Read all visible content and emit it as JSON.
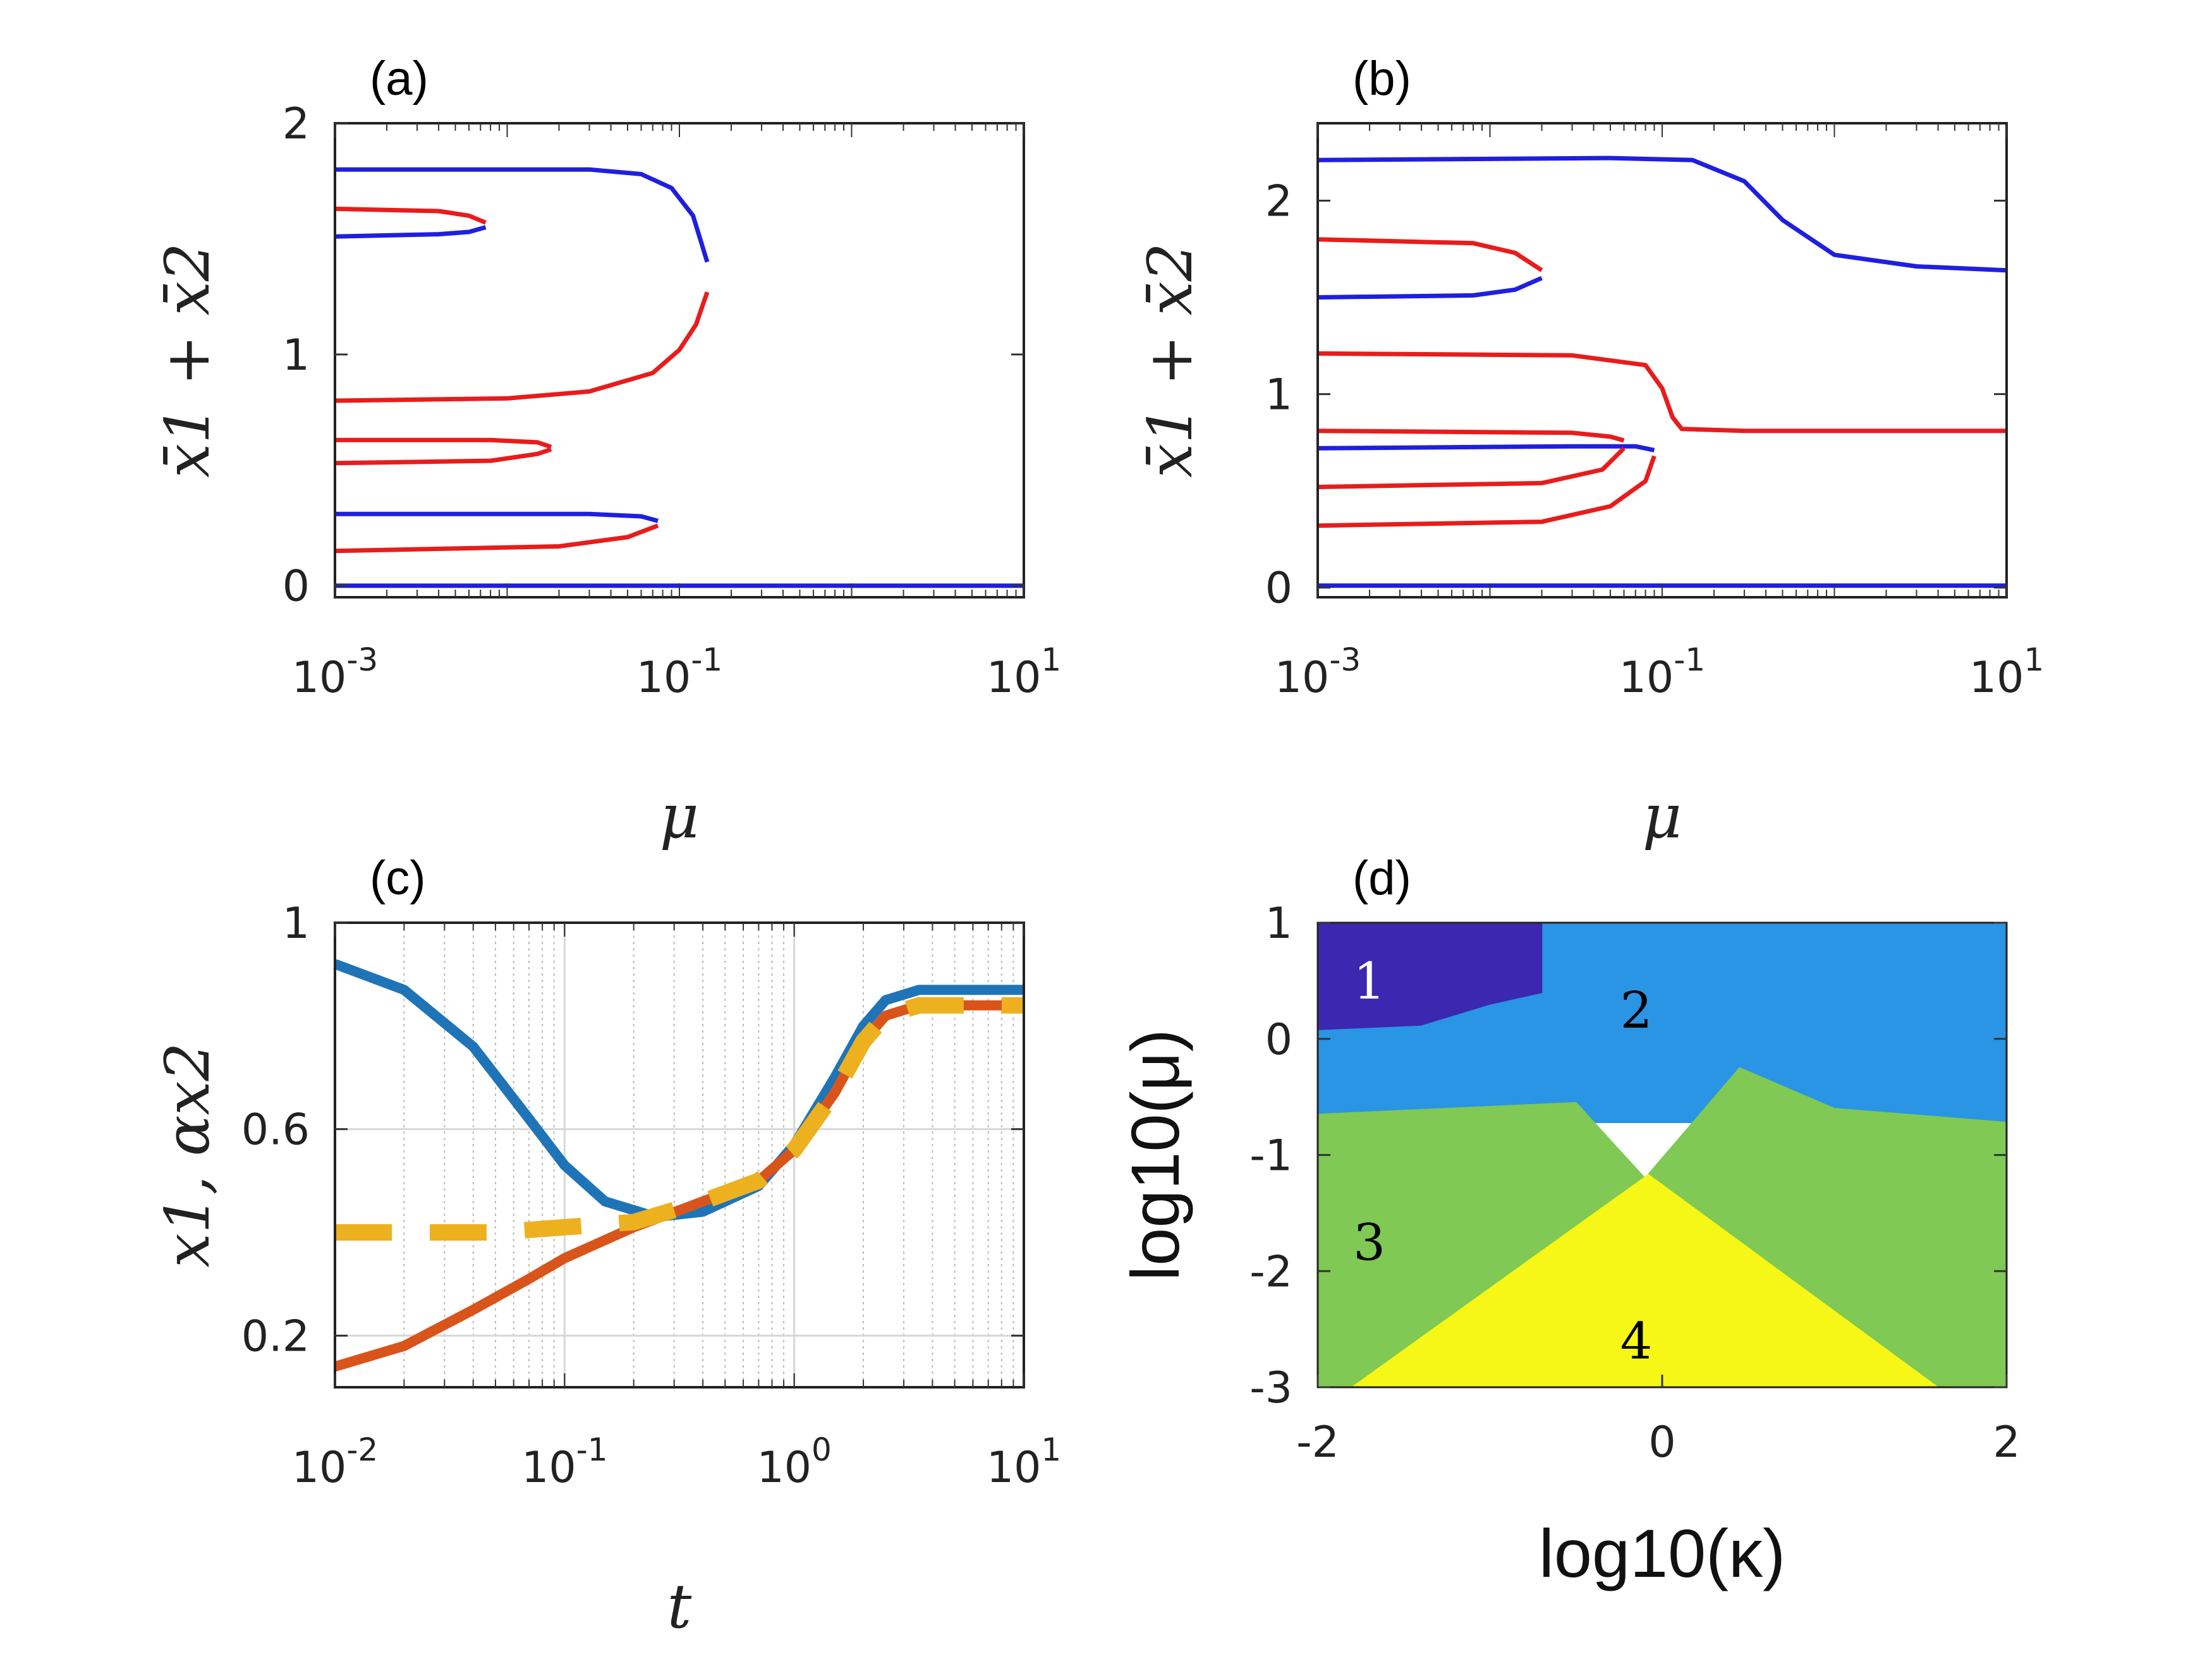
{
  "chart_data": [
    {
      "panel": "a",
      "type": "line",
      "title": "(a)",
      "xlabel": "μ",
      "ylabel": "x̄1 + x̄2",
      "xscale": "log",
      "xlim": [
        0.001,
        10
      ],
      "ylim": [
        -0.05,
        2
      ],
      "xticks": [
        {
          "v": 0.001,
          "b": "10",
          "e": "-3"
        },
        {
          "v": 0.1,
          "b": "10",
          "e": "-1"
        },
        {
          "v": 10,
          "b": "10",
          "e": "1"
        }
      ],
      "yticks": [
        {
          "v": 0,
          "label": "0"
        },
        {
          "v": 1,
          "label": "1"
        },
        {
          "v": 2,
          "label": "2"
        }
      ],
      "series": [
        {
          "color": "#1f1fe0",
          "points": [
            [
              0.001,
              1.8
            ],
            [
              0.01,
              1.8
            ],
            [
              0.03,
              1.8
            ],
            [
              0.06,
              1.78
            ],
            [
              0.09,
              1.72
            ],
            [
              0.12,
              1.6
            ],
            [
              0.145,
              1.4
            ]
          ]
        },
        {
          "color": "#e81c1c",
          "points": [
            [
              0.001,
              0.8
            ],
            [
              0.01,
              0.81
            ],
            [
              0.03,
              0.84
            ],
            [
              0.07,
              0.92
            ],
            [
              0.1,
              1.02
            ],
            [
              0.125,
              1.13
            ],
            [
              0.145,
              1.27
            ]
          ]
        },
        {
          "color": "#e81c1c",
          "points": [
            [
              0.001,
              1.63
            ],
            [
              0.004,
              1.62
            ],
            [
              0.006,
              1.6
            ],
            [
              0.0075,
              1.57
            ]
          ]
        },
        {
          "color": "#1f1fe0",
          "points": [
            [
              0.001,
              1.51
            ],
            [
              0.004,
              1.52
            ],
            [
              0.006,
              1.53
            ],
            [
              0.0075,
              1.55
            ]
          ]
        },
        {
          "color": "#e81c1c",
          "points": [
            [
              0.001,
              0.63
            ],
            [
              0.008,
              0.63
            ],
            [
              0.015,
              0.62
            ],
            [
              0.018,
              0.6
            ]
          ]
        },
        {
          "color": "#e81c1c",
          "points": [
            [
              0.001,
              0.53
            ],
            [
              0.008,
              0.54
            ],
            [
              0.015,
              0.57
            ],
            [
              0.018,
              0.59
            ]
          ]
        },
        {
          "color": "#1f1fe0",
          "points": [
            [
              0.001,
              0.31
            ],
            [
              0.03,
              0.31
            ],
            [
              0.06,
              0.3
            ],
            [
              0.075,
              0.28
            ]
          ]
        },
        {
          "color": "#e81c1c",
          "points": [
            [
              0.001,
              0.15
            ],
            [
              0.02,
              0.17
            ],
            [
              0.05,
              0.21
            ],
            [
              0.075,
              0.26
            ]
          ]
        },
        {
          "color": "#1f1fe0",
          "points": [
            [
              0.001,
              0.0
            ],
            [
              10,
              0.0
            ]
          ]
        }
      ]
    },
    {
      "panel": "b",
      "type": "line",
      "title": "(b)",
      "xlabel": "μ",
      "ylabel": "x̄1 + x̄2",
      "xscale": "log",
      "xlim": [
        0.001,
        10
      ],
      "ylim": [
        -0.05,
        2.4
      ],
      "xticks": [
        {
          "v": 0.001,
          "b": "10",
          "e": "-3"
        },
        {
          "v": 0.1,
          "b": "10",
          "e": "-1"
        },
        {
          "v": 10,
          "b": "10",
          "e": "1"
        }
      ],
      "yticks": [
        {
          "v": 0,
          "label": "0"
        },
        {
          "v": 1,
          "label": "1"
        },
        {
          "v": 2,
          "label": "2"
        }
      ],
      "series": [
        {
          "color": "#1f1fe0",
          "points": [
            [
              0.001,
              2.21
            ],
            [
              0.05,
              2.22
            ],
            [
              0.15,
              2.21
            ],
            [
              0.3,
              2.1
            ],
            [
              0.5,
              1.9
            ],
            [
              1,
              1.72
            ],
            [
              3,
              1.66
            ],
            [
              10,
              1.64
            ]
          ]
        },
        {
          "color": "#e81c1c",
          "points": [
            [
              0.001,
              1.8
            ],
            [
              0.008,
              1.78
            ],
            [
              0.014,
              1.73
            ],
            [
              0.02,
              1.64
            ]
          ]
        },
        {
          "color": "#1f1fe0",
          "points": [
            [
              0.001,
              1.5
            ],
            [
              0.008,
              1.51
            ],
            [
              0.014,
              1.54
            ],
            [
              0.02,
              1.6
            ]
          ]
        },
        {
          "color": "#e81c1c",
          "points": [
            [
              0.001,
              1.21
            ],
            [
              0.03,
              1.2
            ],
            [
              0.08,
              1.15
            ],
            [
              0.1,
              1.03
            ],
            [
              0.115,
              0.88
            ],
            [
              0.13,
              0.82
            ],
            [
              0.3,
              0.81
            ],
            [
              10,
              0.81
            ]
          ]
        },
        {
          "color": "#e81c1c",
          "points": [
            [
              0.001,
              0.81
            ],
            [
              0.03,
              0.8
            ],
            [
              0.05,
              0.78
            ],
            [
              0.06,
              0.76
            ]
          ]
        },
        {
          "color": "#1f1fe0",
          "points": [
            [
              0.001,
              0.72
            ],
            [
              0.03,
              0.73
            ],
            [
              0.07,
              0.73
            ],
            [
              0.09,
              0.71
            ]
          ]
        },
        {
          "color": "#e81c1c",
          "points": [
            [
              0.001,
              0.52
            ],
            [
              0.02,
              0.54
            ],
            [
              0.045,
              0.61
            ],
            [
              0.06,
              0.72
            ]
          ]
        },
        {
          "color": "#e81c1c",
          "points": [
            [
              0.001,
              0.32
            ],
            [
              0.02,
              0.34
            ],
            [
              0.05,
              0.42
            ],
            [
              0.08,
              0.55
            ],
            [
              0.09,
              0.68
            ]
          ]
        },
        {
          "color": "#1f1fe0",
          "points": [
            [
              0.001,
              0.01
            ],
            [
              10,
              0.01
            ]
          ]
        }
      ]
    },
    {
      "panel": "c",
      "type": "line",
      "title": "(c)",
      "xlabel": "t",
      "ylabel": "x1, αx2",
      "xscale": "log",
      "grid": true,
      "xlim": [
        0.01,
        10
      ],
      "ylim": [
        0.1,
        1.0
      ],
      "xticks": [
        {
          "v": 0.01,
          "b": "10",
          "e": "-2"
        },
        {
          "v": 0.1,
          "b": "10",
          "e": "-1"
        },
        {
          "v": 1,
          "b": "10",
          "e": "0"
        },
        {
          "v": 10,
          "b": "10",
          "e": "1"
        }
      ],
      "yticks": [
        {
          "v": 0.2,
          "label": "0.2"
        },
        {
          "v": 0.6,
          "label": "0.6"
        },
        {
          "v": 1.0,
          "label": "1"
        }
      ],
      "series": [
        {
          "color": "#1f74b8",
          "width": 16,
          "points": [
            [
              0.01,
              0.92
            ],
            [
              0.02,
              0.87
            ],
            [
              0.04,
              0.76
            ],
            [
              0.07,
              0.62
            ],
            [
              0.1,
              0.53
            ],
            [
              0.15,
              0.46
            ],
            [
              0.25,
              0.43
            ],
            [
              0.4,
              0.44
            ],
            [
              0.7,
              0.49
            ],
            [
              1,
              0.57
            ],
            [
              1.5,
              0.7
            ],
            [
              2,
              0.8
            ],
            [
              2.5,
              0.85
            ],
            [
              3.5,
              0.87
            ],
            [
              10,
              0.87
            ]
          ]
        },
        {
          "color": "#d9541a",
          "width": 16,
          "points": [
            [
              0.01,
              0.14
            ],
            [
              0.02,
              0.18
            ],
            [
              0.04,
              0.25
            ],
            [
              0.07,
              0.31
            ],
            [
              0.1,
              0.35
            ],
            [
              0.2,
              0.41
            ],
            [
              0.4,
              0.46
            ],
            [
              0.7,
              0.5
            ],
            [
              1,
              0.56
            ],
            [
              1.5,
              0.67
            ],
            [
              2,
              0.77
            ],
            [
              2.5,
              0.82
            ],
            [
              3.5,
              0.84
            ],
            [
              10,
              0.84
            ]
          ]
        },
        {
          "color": "#edb120",
          "width": 26,
          "dash": "90 60",
          "points": [
            [
              0.01,
              0.4
            ],
            [
              0.05,
              0.4
            ],
            [
              0.1,
              0.41
            ],
            [
              0.2,
              0.42
            ],
            [
              0.4,
              0.46
            ],
            [
              0.7,
              0.5
            ],
            [
              1,
              0.56
            ],
            [
              1.5,
              0.67
            ],
            [
              2,
              0.77
            ],
            [
              2.5,
              0.82
            ],
            [
              3.5,
              0.84
            ],
            [
              10,
              0.84
            ]
          ]
        }
      ]
    },
    {
      "panel": "d",
      "type": "heatmap",
      "title": "(d)",
      "xlabel": "log10(κ)",
      "ylabel": "log10(μ)",
      "xlim": [
        -2,
        2
      ],
      "ylim": [
        -3,
        1
      ],
      "xticks": [
        {
          "v": -2,
          "label": "-2"
        },
        {
          "v": 0,
          "label": "0"
        },
        {
          "v": 2,
          "label": "2"
        }
      ],
      "yticks": [
        {
          "v": 1,
          "label": "1"
        },
        {
          "v": 0,
          "label": "0"
        },
        {
          "v": -1,
          "label": "-1"
        },
        {
          "v": -2,
          "label": "-2"
        },
        {
          "v": -3,
          "label": "-3"
        }
      ],
      "regions": [
        {
          "id": "2",
          "color": "#2a94e5",
          "label_color": "#000000",
          "label_at": [
            -0.15,
            0.25
          ],
          "polygon": [
            [
              -2,
              1
            ],
            [
              2,
              1
            ],
            [
              2,
              -0.72
            ],
            [
              -2,
              -0.72
            ]
          ]
        },
        {
          "id": "3",
          "color": "#7fc954",
          "label_color": "#000000",
          "label_at": [
            -1.7,
            -1.75
          ],
          "polygon": [
            [
              -2,
              -0.65
            ],
            [
              -0.5,
              -0.55
            ],
            [
              -0.1,
              -1.2
            ],
            [
              0.45,
              -0.25
            ],
            [
              1.0,
              -0.6
            ],
            [
              2,
              -0.72
            ],
            [
              2,
              -3
            ],
            [
              -2,
              -3
            ]
          ]
        },
        {
          "id": "4",
          "color": "#f6f716",
          "label_color": "#000000",
          "label_at": [
            -0.15,
            -2.6
          ],
          "polygon": [
            [
              -1.8,
              -3
            ],
            [
              -0.08,
              -1.17
            ],
            [
              1.6,
              -3
            ]
          ]
        },
        {
          "id": "1",
          "color": "#3b27b0",
          "label_color": "#ffffff",
          "label_at": [
            -1.7,
            0.5
          ],
          "polygon": [
            [
              -2,
              1
            ],
            [
              -0.7,
              1
            ],
            [
              -0.7,
              0.4
            ],
            [
              -1.0,
              0.3
            ],
            [
              -1.4,
              0.12
            ],
            [
              -2,
              0.08
            ]
          ]
        }
      ]
    }
  ]
}
